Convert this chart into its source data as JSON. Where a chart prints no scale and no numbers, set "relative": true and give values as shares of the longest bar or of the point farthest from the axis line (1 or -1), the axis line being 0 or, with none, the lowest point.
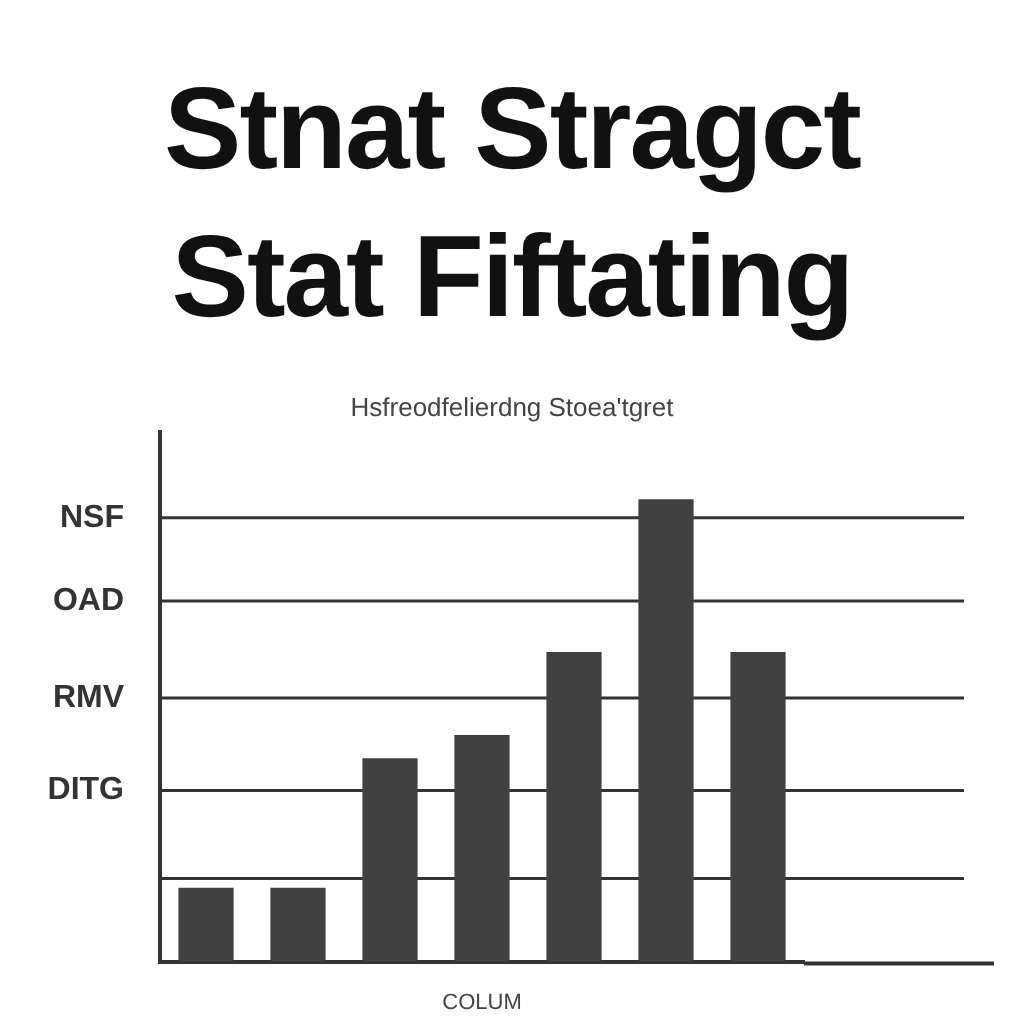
{
  "chart_data": {
    "type": "bar",
    "title": "Stnat Stragct Stat Fiftating",
    "subtitle": "Hsfreodfelierdng Stoea'tgret",
    "xlabel": "COLUM",
    "categories": [
      null,
      null,
      null,
      null,
      null,
      null,
      null
    ],
    "values": [
      0.16,
      0.16,
      0.44,
      0.49,
      0.67,
      1,
      0.67
    ],
    "color": "#404040",
    "relative": true,
    "ref_lines": [
      {
        "axis": "y",
        "value": 0.18,
        "color": "#333333"
      },
      {
        "axis": "y",
        "value": 0.37,
        "label": "DITG",
        "color": "#333333"
      },
      {
        "axis": "y",
        "value": 0.57,
        "label": "RMV",
        "color": "#333333"
      },
      {
        "axis": "y",
        "value": 0.78,
        "label": "OAD",
        "color": "#333333"
      },
      {
        "axis": "y",
        "value": 0.96,
        "label": "NSF",
        "color": "#333333"
      }
    ],
    "legend": false
  }
}
